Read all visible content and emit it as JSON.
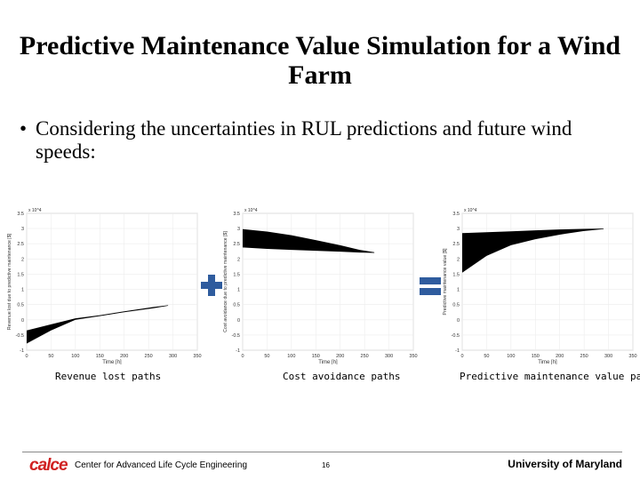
{
  "slide": {
    "title": "Predictive Maintenance Value Simulation for a Wind Farm",
    "bullet_marker": "•",
    "bullet": "Considering the uncertainties in RUL predictions and future wind speeds:"
  },
  "operators": {
    "plus": "plus-sign",
    "equals": "equals-sign",
    "color": "#2f5c9e"
  },
  "footer": {
    "logo": "calce",
    "center_name": "Center for Advanced Life Cycle Engineering",
    "page_number": "16",
    "university": "University of Maryland",
    "logo_color": "#d02222"
  },
  "chart_data": [
    {
      "type": "area",
      "caption": "Revenue lost paths",
      "ylabel": "Revenue lost due to predictive maintenance [$]",
      "xlabel": "Time [h]",
      "exponent": "x 10^4",
      "xlim": [
        0,
        350
      ],
      "ylim": [
        -1,
        3.5
      ],
      "xticks": [
        "0",
        "50",
        "100",
        "150",
        "200",
        "250",
        "300",
        "350"
      ],
      "yticks": [
        "-1",
        "-0.5",
        "0",
        "0.5",
        "1",
        "1.5",
        "2",
        "2.5",
        "3",
        "3.5"
      ],
      "upper": [
        [
          0,
          -0.35
        ],
        [
          50,
          -0.15
        ],
        [
          100,
          0.05
        ],
        [
          150,
          0.15
        ],
        [
          200,
          0.28
        ],
        [
          260,
          0.42
        ],
        [
          290,
          0.48
        ]
      ],
      "lower": [
        [
          0,
          -0.78
        ],
        [
          50,
          -0.35
        ],
        [
          100,
          0.0
        ],
        [
          150,
          0.12
        ],
        [
          200,
          0.25
        ],
        [
          260,
          0.38
        ],
        [
          290,
          0.46
        ]
      ]
    },
    {
      "type": "area",
      "caption": "Cost avoidance paths",
      "ylabel": "Cost avoidance due to predictive maintenance [$]",
      "xlabel": "Time [h]",
      "exponent": "x 10^4",
      "xlim": [
        0,
        350
      ],
      "ylim": [
        -1,
        3.5
      ],
      "xticks": [
        "0",
        "50",
        "100",
        "150",
        "200",
        "250",
        "300",
        "350"
      ],
      "yticks": [
        "-1",
        "-0.5",
        "0",
        "0.5",
        "1",
        "1.5",
        "2",
        "2.5",
        "3",
        "3.5"
      ],
      "upper": [
        [
          0,
          2.98
        ],
        [
          50,
          2.9
        ],
        [
          100,
          2.78
        ],
        [
          150,
          2.62
        ],
        [
          200,
          2.45
        ],
        [
          240,
          2.3
        ],
        [
          270,
          2.22
        ]
      ],
      "lower": [
        [
          0,
          2.38
        ],
        [
          50,
          2.33
        ],
        [
          100,
          2.3
        ],
        [
          150,
          2.27
        ],
        [
          200,
          2.24
        ],
        [
          240,
          2.21
        ],
        [
          270,
          2.2
        ]
      ]
    },
    {
      "type": "area",
      "caption": "Predictive maintenance value paths",
      "ylabel": "Predictive maintenance value [$]",
      "xlabel": "Time [h]",
      "exponent": "x 10^4",
      "xlim": [
        0,
        350
      ],
      "ylim": [
        -1,
        3.5
      ],
      "xticks": [
        "0",
        "50",
        "100",
        "150",
        "200",
        "250",
        "300",
        "350"
      ],
      "yticks": [
        "-1",
        "-0.5",
        "0",
        "0.5",
        "1",
        "1.5",
        "2",
        "2.5",
        "3",
        "3.5"
      ],
      "upper": [
        [
          0,
          2.85
        ],
        [
          50,
          2.88
        ],
        [
          100,
          2.91
        ],
        [
          150,
          2.94
        ],
        [
          200,
          2.97
        ],
        [
          250,
          2.99
        ],
        [
          290,
          3.0
        ]
      ],
      "lower": [
        [
          0,
          1.55
        ],
        [
          50,
          2.1
        ],
        [
          100,
          2.45
        ],
        [
          150,
          2.65
        ],
        [
          200,
          2.8
        ],
        [
          250,
          2.92
        ],
        [
          290,
          2.98
        ]
      ]
    }
  ]
}
